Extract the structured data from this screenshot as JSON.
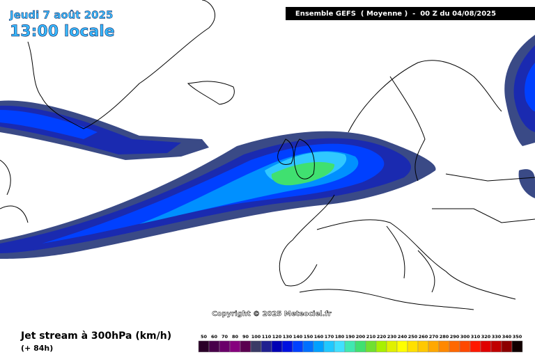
{
  "header": {
    "date": "Jeudi 7 août 2025",
    "local_time": "13:00 locale",
    "model": "Ensemble GEFS  ( Moyenne )  -  00 Z du 04/08/2025"
  },
  "copyright": "Copyright © 2025 Meteociel.fr",
  "footer": {
    "title": "Jet stream à 300hPa (km/h)",
    "lead": "(+ 84h)"
  },
  "legend": {
    "values": [
      50,
      60,
      70,
      80,
      90,
      100,
      110,
      120,
      130,
      140,
      150,
      160,
      170,
      180,
      190,
      200,
      210,
      220,
      230,
      240,
      250,
      260,
      270,
      280,
      290,
      300,
      310,
      320,
      330,
      340,
      350
    ],
    "colors": [
      "#2a0028",
      "#48004a",
      "#6a006a",
      "#86007e",
      "#5a0050",
      "#3a3a66",
      "#202090",
      "#0000b4",
      "#0010e0",
      "#0040ff",
      "#0070ff",
      "#00a0ff",
      "#20c8ff",
      "#40e0ff",
      "#40e8b0",
      "#40e070",
      "#70e030",
      "#a8f000",
      "#e0f000",
      "#ffff00",
      "#ffe000",
      "#ffc800",
      "#ffa800",
      "#ff8800",
      "#ff6800",
      "#ff4800",
      "#ff1800",
      "#e00000",
      "#c00000",
      "#8c0000",
      "#100000"
    ]
  }
}
